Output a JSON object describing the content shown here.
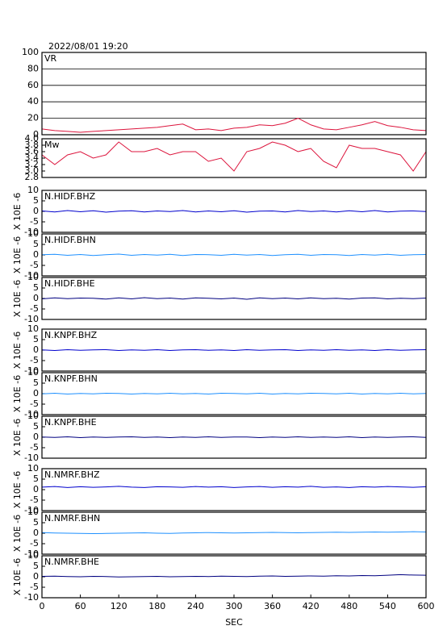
{
  "chart_data": [
    {
      "type": "line",
      "title": "2022/08/01 19:20",
      "xlim": [
        0,
        600
      ],
      "ylim": [
        0,
        100
      ],
      "yticks": [
        0,
        20,
        40,
        60,
        80,
        100
      ],
      "grid": true,
      "x": [
        0,
        20,
        40,
        60,
        80,
        100,
        120,
        140,
        160,
        180,
        200,
        220,
        240,
        260,
        280,
        300,
        320,
        340,
        360,
        380,
        400,
        420,
        440,
        460,
        480,
        500,
        520,
        540,
        560,
        580,
        600
      ],
      "series": [
        {
          "name": "VR",
          "color": "#dc143c",
          "values": [
            7,
            5,
            4,
            3,
            4,
            5,
            6,
            7,
            8,
            9,
            11,
            13,
            6,
            7,
            5,
            8,
            9,
            12,
            11,
            14,
            20,
            12,
            7,
            6,
            9,
            12,
            16,
            11,
            9,
            6,
            5
          ]
        }
      ]
    },
    {
      "type": "line",
      "xlim": [
        0,
        600
      ],
      "ylim": [
        2.8,
        4.0
      ],
      "yticks": [
        2.8,
        {
          "value": 3,
          "label": "3.0"
        },
        3.2,
        3.4,
        3.6,
        3.8,
        {
          "value": 4,
          "label": "4.0"
        }
      ],
      "grid": false,
      "x": [
        0,
        20,
        40,
        60,
        80,
        100,
        120,
        140,
        160,
        180,
        200,
        220,
        240,
        260,
        280,
        300,
        320,
        340,
        360,
        380,
        400,
        420,
        440,
        460,
        480,
        500,
        520,
        540,
        560,
        580,
        600
      ],
      "series": [
        {
          "name": "Mw",
          "color": "#dc143c",
          "values": [
            3.5,
            3.2,
            3.5,
            3.6,
            3.4,
            3.5,
            3.9,
            3.6,
            3.6,
            3.7,
            3.5,
            3.6,
            3.6,
            3.3,
            3.4,
            3.0,
            3.6,
            3.7,
            3.9,
            3.8,
            3.6,
            3.7,
            3.3,
            3.1,
            3.8,
            3.7,
            3.7,
            3.6,
            3.5,
            3.0,
            3.6
          ]
        }
      ]
    },
    {
      "type": "line",
      "xlim": [
        0,
        600
      ],
      "ylim": [
        -10,
        10
      ],
      "yticks": [
        -10,
        -5,
        0,
        5,
        10
      ],
      "ylabel": "X 10E -6",
      "x": [
        0,
        20,
        40,
        60,
        80,
        100,
        120,
        140,
        160,
        180,
        200,
        220,
        240,
        260,
        280,
        300,
        320,
        340,
        360,
        380,
        400,
        420,
        440,
        460,
        480,
        500,
        520,
        540,
        560,
        580,
        600
      ],
      "series": [
        {
          "name": "N.HIDF.BHZ",
          "color": "#0000cd",
          "values": [
            0.2,
            -0.3,
            0.4,
            -0.2,
            0.3,
            -0.4,
            0.1,
            0.3,
            -0.3,
            0.2,
            -0.1,
            0.4,
            -0.3,
            0.2,
            -0.2,
            0.3,
            -0.4,
            0.1,
            0.2,
            -0.3,
            0.4,
            -0.1,
            0.2,
            -0.3,
            0.3,
            -0.2,
            0.4,
            -0.3,
            0.1,
            0.2,
            -0.1
          ]
        }
      ]
    },
    {
      "type": "line",
      "xlim": [
        0,
        600
      ],
      "ylim": [
        -10,
        10
      ],
      "yticks": [
        -10,
        -5,
        0,
        5,
        10
      ],
      "ylabel": "X 10E -6",
      "x": [
        0,
        20,
        40,
        60,
        80,
        100,
        120,
        140,
        160,
        180,
        200,
        220,
        240,
        260,
        280,
        300,
        320,
        340,
        360,
        380,
        400,
        420,
        440,
        460,
        480,
        500,
        520,
        540,
        560,
        580,
        600
      ],
      "series": [
        {
          "name": "N.HIDF.BHN",
          "color": "#1e90ff",
          "values": [
            0.1,
            0.3,
            -0.2,
            0.2,
            -0.3,
            0.1,
            0.4,
            -0.2,
            0.2,
            -0.1,
            0.3,
            -0.3,
            0.2,
            0.1,
            -0.2,
            0.3,
            -0.1,
            0.2,
            -0.3,
            0.1,
            0.3,
            -0.2,
            0.2,
            0.1,
            -0.3,
            0.2,
            -0.1,
            0.3,
            -0.2,
            0.1,
            0.2
          ]
        }
      ]
    },
    {
      "type": "line",
      "xlim": [
        0,
        600
      ],
      "ylim": [
        -10,
        10
      ],
      "yticks": [
        -10,
        -5,
        0,
        5,
        10
      ],
      "ylabel": "X 10E -6",
      "x": [
        0,
        20,
        40,
        60,
        80,
        100,
        120,
        140,
        160,
        180,
        200,
        220,
        240,
        260,
        280,
        300,
        320,
        340,
        360,
        380,
        400,
        420,
        440,
        460,
        480,
        500,
        520,
        540,
        560,
        580,
        600
      ],
      "series": [
        {
          "name": "N.HIDF.BHE",
          "color": "#000080",
          "values": [
            -0.2,
            0.3,
            -0.1,
            0.2,
            0.1,
            -0.3,
            0.3,
            -0.2,
            0.4,
            -0.1,
            0.2,
            -0.3,
            0.3,
            0.1,
            -0.2,
            0.2,
            -0.4,
            0.3,
            -0.1,
            0.2,
            -0.2,
            0.3,
            -0.1,
            0.1,
            -0.3,
            0.2,
            0.3,
            -0.2,
            0.1,
            -0.1,
            0.2
          ]
        }
      ]
    },
    {
      "type": "line",
      "xlim": [
        0,
        600
      ],
      "ylim": [
        -10,
        10
      ],
      "yticks": [
        -10,
        -5,
        0,
        5,
        10
      ],
      "ylabel": "X 10E -6",
      "x": [
        0,
        20,
        40,
        60,
        80,
        100,
        120,
        140,
        160,
        180,
        200,
        220,
        240,
        260,
        280,
        300,
        320,
        340,
        360,
        380,
        400,
        420,
        440,
        460,
        480,
        500,
        520,
        540,
        560,
        580,
        600
      ],
      "series": [
        {
          "name": "N.KNPF.BHZ",
          "color": "#0000cd",
          "values": [
            0.1,
            -0.2,
            0.2,
            -0.1,
            0.1,
            0.2,
            -0.2,
            0.1,
            -0.1,
            0.2,
            -0.2,
            0.1,
            0.2,
            -0.1,
            0.1,
            -0.2,
            0.2,
            -0.1,
            0.1,
            0.2,
            -0.2,
            0.1,
            -0.1,
            0.2,
            -0.1,
            0.1,
            -0.2,
            0.2,
            -0.1,
            0.1,
            0.2
          ]
        }
      ]
    },
    {
      "type": "line",
      "xlim": [
        0,
        600
      ],
      "ylim": [
        -10,
        10
      ],
      "yticks": [
        -10,
        -5,
        0,
        5,
        10
      ],
      "ylabel": "X 10E -6",
      "x": [
        0,
        20,
        40,
        60,
        80,
        100,
        120,
        140,
        160,
        180,
        200,
        220,
        240,
        260,
        280,
        300,
        320,
        340,
        360,
        380,
        400,
        420,
        440,
        460,
        480,
        500,
        520,
        540,
        560,
        580,
        600
      ],
      "series": [
        {
          "name": "N.KNPF.BHN",
          "color": "#1e90ff",
          "values": [
            -0.1,
            0.2,
            -0.2,
            0.1,
            -0.1,
            0.2,
            0.1,
            -0.2,
            0.1,
            -0.1,
            0.2,
            -0.1,
            0.1,
            -0.2,
            0.2,
            0.1,
            -0.1,
            0.2,
            -0.2,
            0.1,
            -0.1,
            0.2,
            0.1,
            -0.1,
            0.2,
            -0.2,
            0.1,
            -0.1,
            0.2,
            -0.1,
            0.1
          ]
        }
      ]
    },
    {
      "type": "line",
      "xlim": [
        0,
        600
      ],
      "ylim": [
        -10,
        10
      ],
      "yticks": [
        -10,
        -5,
        0,
        5,
        10
      ],
      "ylabel": "X 10E -6",
      "x": [
        0,
        20,
        40,
        60,
        80,
        100,
        120,
        140,
        160,
        180,
        200,
        220,
        240,
        260,
        280,
        300,
        320,
        340,
        360,
        380,
        400,
        420,
        440,
        460,
        480,
        500,
        520,
        540,
        560,
        580,
        600
      ],
      "series": [
        {
          "name": "N.KNPF.BHE",
          "color": "#000080",
          "values": [
            0.1,
            -0.1,
            0.2,
            -0.2,
            0.1,
            -0.1,
            0.1,
            0.2,
            -0.1,
            0.1,
            -0.2,
            0.1,
            -0.1,
            0.2,
            -0.1,
            0.1,
            0.1,
            -0.2,
            0.1,
            -0.1,
            0.2,
            -0.1,
            0.1,
            -0.1,
            0.2,
            -0.2,
            0.1,
            -0.1,
            0.1,
            0.2,
            -0.1
          ]
        }
      ]
    },
    {
      "type": "line",
      "xlim": [
        0,
        600
      ],
      "ylim": [
        -10,
        10
      ],
      "yticks": [
        -10,
        -5,
        0,
        5,
        10
      ],
      "ylabel": "X 10E -6",
      "x": [
        0,
        20,
        40,
        60,
        80,
        100,
        120,
        140,
        160,
        180,
        200,
        220,
        240,
        260,
        280,
        300,
        320,
        340,
        360,
        380,
        400,
        420,
        440,
        460,
        480,
        500,
        520,
        540,
        560,
        580,
        600
      ],
      "series": [
        {
          "name": "N.NMRF.BHZ",
          "color": "#0000cd",
          "values": [
            1.2,
            1.5,
            1.0,
            1.4,
            1.1,
            1.3,
            1.6,
            1.2,
            1.0,
            1.4,
            1.3,
            1.1,
            1.5,
            1.2,
            1.4,
            1.0,
            1.3,
            1.5,
            1.1,
            1.4,
            1.2,
            1.6,
            1.1,
            1.3,
            1.0,
            1.4,
            1.2,
            1.5,
            1.3,
            1.1,
            1.4
          ]
        }
      ]
    },
    {
      "type": "line",
      "xlim": [
        0,
        600
      ],
      "ylim": [
        -10,
        10
      ],
      "yticks": [
        -10,
        -5,
        0,
        5,
        10
      ],
      "ylabel": "X 10E -6",
      "x": [
        0,
        20,
        40,
        60,
        80,
        100,
        120,
        140,
        160,
        180,
        200,
        220,
        240,
        260,
        280,
        300,
        320,
        340,
        360,
        380,
        400,
        420,
        440,
        460,
        480,
        500,
        520,
        540,
        560,
        580,
        600
      ],
      "series": [
        {
          "name": "N.NMRF.BHN",
          "color": "#1e90ff",
          "values": [
            0.3,
            0.1,
            0.0,
            -0.1,
            -0.2,
            -0.1,
            0.0,
            0.1,
            0.2,
            0.0,
            -0.1,
            0.1,
            0.2,
            0.3,
            0.2,
            0.1,
            0.2,
            0.3,
            0.4,
            0.3,
            0.2,
            0.3,
            0.4,
            0.5,
            0.4,
            0.5,
            0.6,
            0.5,
            0.6,
            0.7,
            0.6
          ]
        }
      ]
    },
    {
      "type": "line",
      "xlim": [
        0,
        600
      ],
      "ylim": [
        -10,
        10
      ],
      "yticks": [
        -10,
        -5,
        0,
        5,
        10
      ],
      "ylabel": "X 10E -6",
      "xlabel": "SEC",
      "xticks": [
        0,
        60,
        120,
        180,
        240,
        300,
        360,
        420,
        480,
        540,
        600
      ],
      "x": [
        0,
        20,
        40,
        60,
        80,
        100,
        120,
        140,
        160,
        180,
        200,
        220,
        240,
        260,
        280,
        300,
        320,
        340,
        360,
        380,
        400,
        420,
        440,
        460,
        480,
        500,
        520,
        540,
        560,
        580,
        600
      ],
      "series": [
        {
          "name": "N.NMRF.BHE",
          "color": "#000080",
          "values": [
            0.2,
            0.3,
            0.1,
            0.0,
            0.2,
            0.1,
            -0.1,
            0.0,
            0.1,
            0.2,
            0.0,
            0.1,
            0.2,
            0.1,
            0.3,
            0.2,
            0.1,
            0.3,
            0.4,
            0.2,
            0.3,
            0.4,
            0.3,
            0.5,
            0.4,
            0.6,
            0.5,
            0.7,
            1.0,
            0.8,
            0.7
          ]
        }
      ]
    }
  ]
}
